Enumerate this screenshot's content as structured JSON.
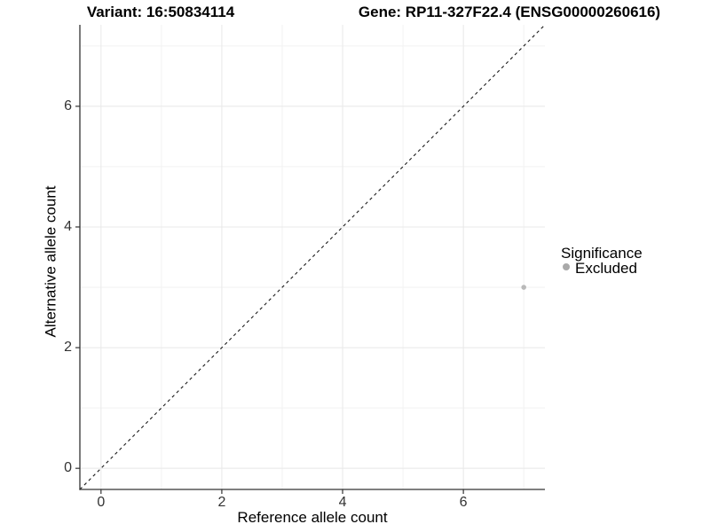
{
  "titles": {
    "variant": "Variant: 16:50834114",
    "gene": "Gene: RP11-327F22.4 (ENSG00000260616)"
  },
  "chart_data": {
    "type": "scatter",
    "xlabel": "Reference allele count",
    "ylabel": "Alternative allele count",
    "xlim": [
      -0.35,
      7.35
    ],
    "ylim": [
      -0.35,
      7.35
    ],
    "x_major_ticks": [
      0,
      2,
      4,
      6
    ],
    "y_major_ticks": [
      0,
      2,
      4,
      6
    ],
    "x_minor_ticks": [
      1,
      3,
      5,
      7
    ],
    "y_minor_ticks": [
      1,
      3,
      5,
      7
    ],
    "grid": "major+minor",
    "identity_line": {
      "type": "abline",
      "slope": 1,
      "intercept": 0,
      "style": "dashed"
    },
    "series": [
      {
        "name": "Excluded",
        "points": [
          {
            "x": 7,
            "y": 3
          }
        ]
      }
    ],
    "legend": {
      "title": "Significance",
      "position": "right",
      "entries": [
        {
          "label": "Excluded",
          "color": "#b0b0b0"
        }
      ]
    }
  },
  "colors": {
    "point": "#b9b9b9",
    "legend_dot": "#a9a9a9",
    "grid_major": "#e8e8e8",
    "grid_minor": "#f2f2f2",
    "axis_line": "#333333",
    "dashed_line": "#1a1a1a",
    "tick_text": "#333333"
  }
}
